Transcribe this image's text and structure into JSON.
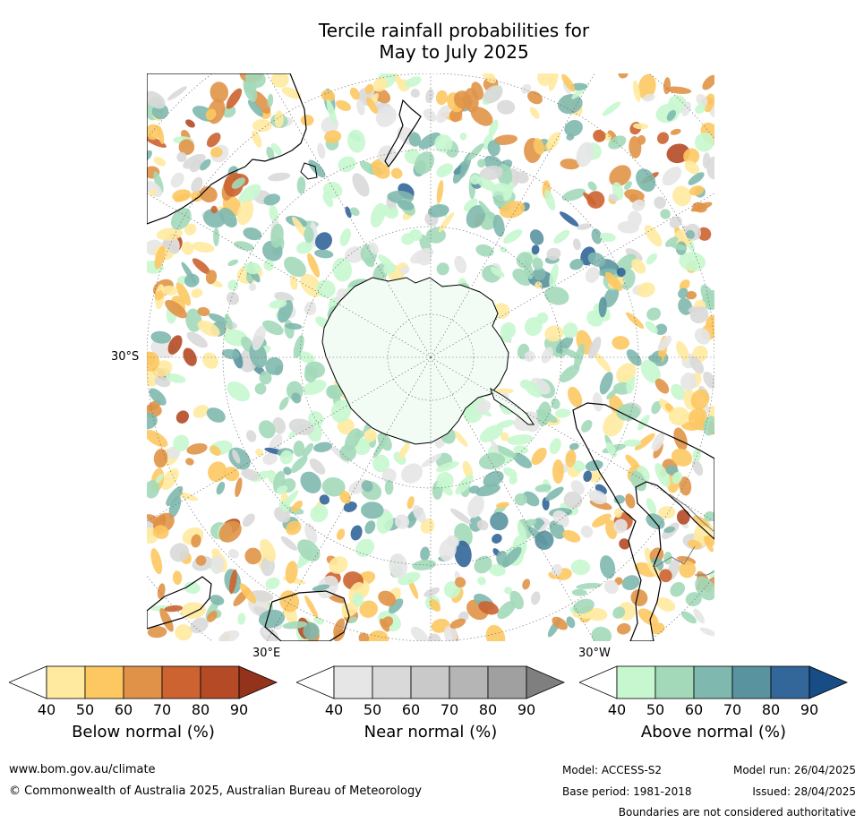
{
  "title": {
    "line1": "Tercile rainfall probabilities for",
    "line2": "May to July 2025"
  },
  "map": {
    "projection": "south-polar-stereographic",
    "lat_label": "30°S",
    "lon_labels": {
      "east": "30°E",
      "west": "30°W"
    }
  },
  "legends": {
    "below": {
      "label": "Below normal (%)",
      "ticks": [
        "40",
        "50",
        "60",
        "70",
        "80",
        "90"
      ],
      "colors": [
        "#ffffff",
        "#ffeaa0",
        "#fdc862",
        "#e09348",
        "#cc6330",
        "#b54a26",
        "#94331c"
      ]
    },
    "near": {
      "label": "Near normal (%)",
      "ticks": [
        "40",
        "50",
        "60",
        "70",
        "80",
        "90"
      ],
      "colors": [
        "#ffffff",
        "#e6e6e6",
        "#d9d9d9",
        "#c9c9c9",
        "#b5b5b5",
        "#a0a0a0",
        "#7f7f7f"
      ]
    },
    "above": {
      "label": "Above normal (%)",
      "ticks": [
        "40",
        "50",
        "60",
        "70",
        "80",
        "90"
      ],
      "colors": [
        "#ffffff",
        "#c6f7cf",
        "#a3d9b9",
        "#7fb8ae",
        "#5a93a0",
        "#336699",
        "#174c85"
      ]
    }
  },
  "footer": {
    "url": "www.bom.gov.au/climate",
    "copyright": "© Commonwealth of Australia 2025, Australian Bureau of Meteorology",
    "model": "Model: ACCESS-S2",
    "base_period": "Base period: 1981-2018",
    "model_run": "Model run: 26/04/2025",
    "issued": "Issued: 28/04/2025",
    "disclaimer": "Boundaries are not considered authoritative"
  }
}
